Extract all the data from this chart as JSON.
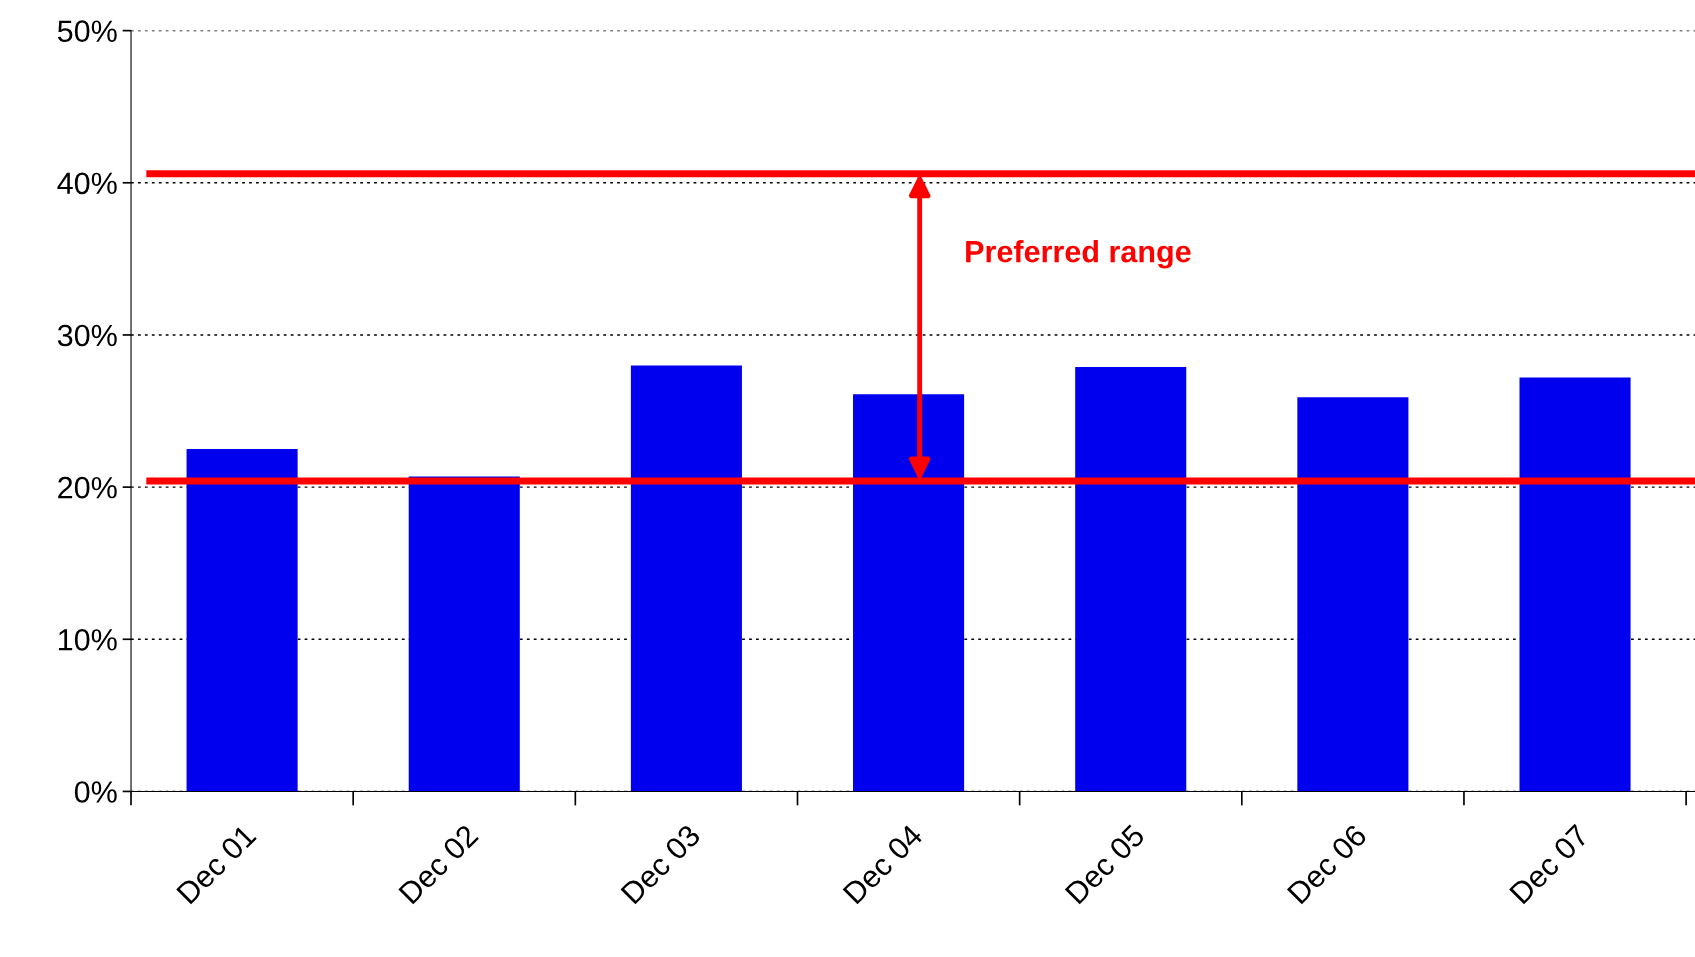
{
  "chart_data": {
    "type": "bar",
    "categories": [
      "Dec 01",
      "Dec 02",
      "Dec 03",
      "Dec 04",
      "Dec 05",
      "Dec 06",
      "Dec 07"
    ],
    "values": [
      22.5,
      20.7,
      28.0,
      26.1,
      27.9,
      25.9,
      27.2
    ],
    "color": "#0000ee",
    "ylim": [
      0,
      50
    ],
    "yticks": [
      {
        "value": 0,
        "label": "0%"
      },
      {
        "value": 10,
        "label": "10%"
      },
      {
        "value": 20,
        "label": "20%"
      },
      {
        "value": 30,
        "label": "30%"
      },
      {
        "value": 40,
        "label": "40%"
      },
      {
        "value": 50,
        "label": "50%"
      }
    ],
    "grid": "y",
    "ref_lines": [
      {
        "axis": "y",
        "value": 40.6,
        "color": "#ff0000"
      },
      {
        "axis": "y",
        "value": 20.4,
        "color": "#ff0000"
      }
    ],
    "annotations": [
      "Preferred range"
    ]
  }
}
